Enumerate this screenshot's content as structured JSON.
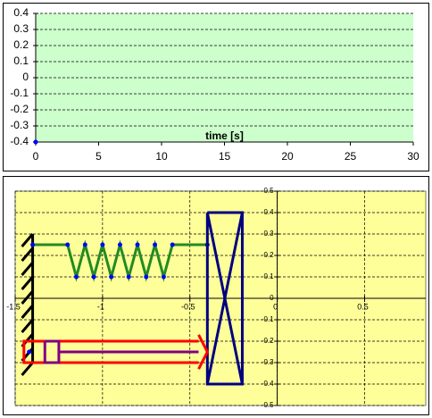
{
  "chart_data": [
    {
      "type": "line",
      "x": [
        0
      ],
      "values": [
        -0.4
      ],
      "color": "#0000ff",
      "xlabel": "time [s]",
      "xlim": [
        0,
        30
      ],
      "xticks": [
        0,
        5,
        10,
        15,
        20,
        25,
        30
      ],
      "ylim": [
        -0.4,
        0.4
      ],
      "yticks": [
        -0.4,
        -0.3,
        -0.2,
        -0.1,
        0,
        0.1,
        0.2,
        0.3,
        0.4
      ],
      "grid": true,
      "background": "#ccffcc"
    },
    {
      "type": "scatter",
      "xlim": [
        -1.5,
        0.85
      ],
      "xticks": [
        -1.5,
        -1,
        -0.5,
        0,
        0.5
      ],
      "ylim": [
        -0.5,
        0.5
      ],
      "yticks": [
        -0.5,
        -0.4,
        -0.3,
        -0.2,
        -0.1,
        0,
        0.1,
        0.2,
        0.3,
        0.4,
        0.5
      ],
      "grid": true,
      "background": "#ffff99",
      "series": [
        {
          "color": "#000000",
          "x": [
            -1.4,
            -1.4
          ],
          "values": [
            0.3,
            -0.3
          ],
          "wall": true
        },
        {
          "color": "#228b22",
          "markers": true,
          "marker_color": "#0000ff",
          "x": [
            -1.4,
            -1.2,
            -1.15,
            -1.1,
            -1.05,
            -1.0,
            -0.95,
            -0.9,
            -0.85,
            -0.8,
            -0.75,
            -0.7,
            -0.65,
            -0.6,
            -0.4
          ],
          "values": [
            0.25,
            0.25,
            0.1,
            0.25,
            0.1,
            0.25,
            0.1,
            0.25,
            0.1,
            0.25,
            0.1,
            0.25,
            0.1,
            0.25,
            0.25
          ]
        },
        {
          "color": "#000080",
          "x": [
            -0.4,
            -0.2,
            -0.2,
            -0.4,
            -0.4,
            -0.2,
            null,
            -0.2,
            -0.4
          ],
          "values": [
            0.4,
            0.4,
            -0.4,
            -0.4,
            0.4,
            -0.4,
            null,
            0.4,
            -0.4
          ]
        },
        {
          "color": "#ff0000",
          "x": [
            -0.45,
            -1.45,
            -1.45,
            -0.45,
            null,
            -0.45,
            -0.4,
            -0.45
          ],
          "values": [
            -0.2,
            -0.2,
            -0.3,
            -0.3,
            null,
            -0.17,
            -0.25,
            -0.33
          ]
        },
        {
          "color": "#800080",
          "x": [
            -1.33,
            -1.25,
            -1.25,
            -1.33,
            -1.33,
            null,
            -1.25,
            -0.45
          ],
          "values": [
            -0.2,
            -0.2,
            -0.3,
            -0.3,
            -0.2,
            null,
            -0.25,
            -0.25
          ]
        },
        {
          "color": "#0000ff",
          "markers": true,
          "marker_color": "#0000ff",
          "x": [
            -1.42
          ],
          "values": [
            -0.25
          ]
        }
      ]
    }
  ]
}
